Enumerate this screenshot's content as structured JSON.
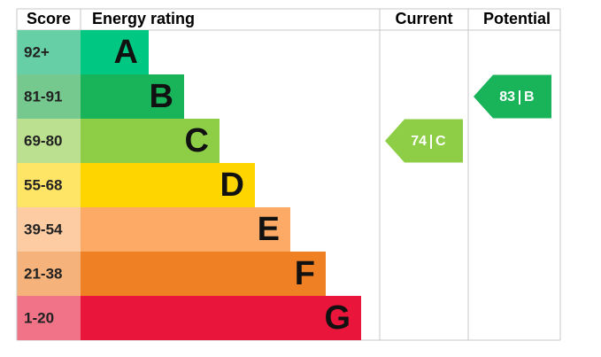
{
  "header": {
    "score": "Score",
    "energy_rating": "Energy rating",
    "current": "Current",
    "potential": "Potential"
  },
  "bands": [
    {
      "score": "92+",
      "rating": "A",
      "color": "#00c781",
      "score_color": "#66cfa6"
    },
    {
      "score": "81-91",
      "rating": "B",
      "color": "#19b459",
      "score_color": "#75c98f"
    },
    {
      "score": "69-80",
      "rating": "C",
      "color": "#8dce46",
      "score_color": "#bbe08f"
    },
    {
      "score": "55-68",
      "rating": "D",
      "color": "#ffd500",
      "score_color": "#ffe566"
    },
    {
      "score": "39-54",
      "rating": "E",
      "color": "#fcaa65",
      "score_color": "#fdcca3"
    },
    {
      "score": "21-38",
      "rating": "F",
      "color": "#ef8023",
      "score_color": "#f5b27a"
    },
    {
      "score": "1-20",
      "rating": "G",
      "color": "#e9153b",
      "score_color": "#f07388"
    }
  ],
  "current": {
    "value": 74,
    "rating": "C"
  },
  "potential": {
    "value": 83,
    "rating": "B"
  }
}
